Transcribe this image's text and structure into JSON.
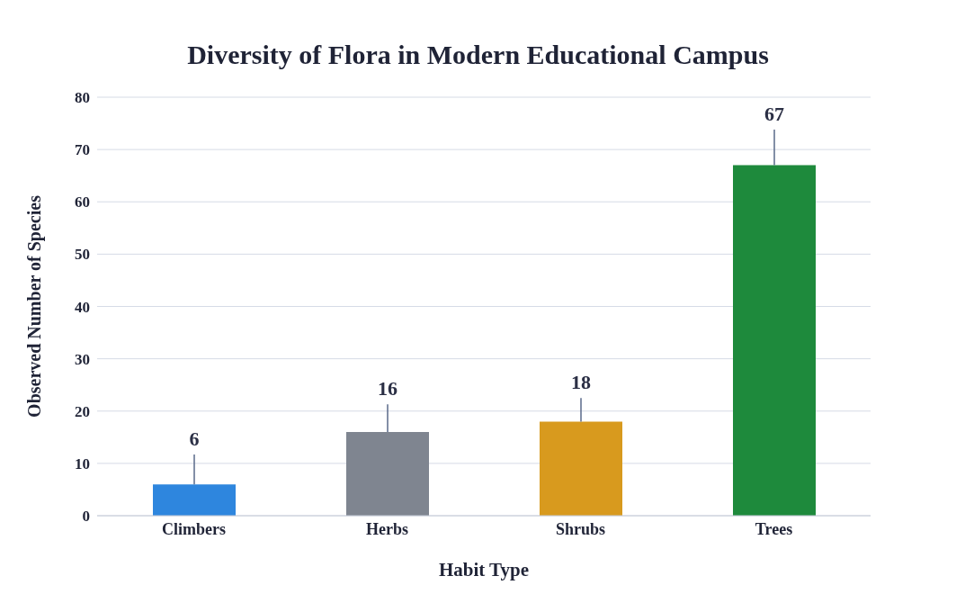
{
  "chart_data": {
    "type": "bar",
    "title": "Diversity of Flora in Modern Educational Campus",
    "xlabel": "Habit Type",
    "ylabel": "Observed Number of Species",
    "categories": [
      "Climbers",
      "Herbs",
      "Shrubs",
      "Trees"
    ],
    "values": [
      6,
      16,
      18,
      67
    ],
    "colors": [
      "#2e86de",
      "#7f8590",
      "#d89a1e",
      "#1e8a3c"
    ],
    "errors": [
      [
        6,
        11.7
      ],
      [
        16,
        21.3
      ],
      [
        18,
        22.5
      ],
      [
        67,
        73.8
      ]
    ],
    "data_labels": true,
    "ylim": [
      0,
      80
    ],
    "yticks": [
      0,
      10,
      20,
      30,
      40,
      50,
      60,
      70,
      80
    ],
    "grid": "y",
    "legend": false
  }
}
